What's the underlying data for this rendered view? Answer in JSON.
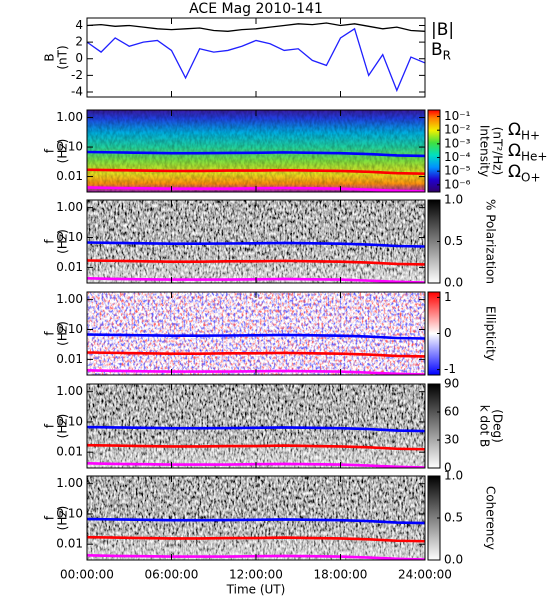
{
  "chart_data": [
    {
      "type": "line",
      "title": "ACE Mag 2010-141",
      "ylabel": [
        "B",
        "(nT)"
      ],
      "x": [
        0,
        1,
        2,
        3,
        4,
        5,
        6,
        7,
        8,
        9,
        10,
        11,
        12,
        13,
        14,
        15,
        16,
        17,
        18,
        19,
        20,
        21,
        22,
        23,
        24
      ],
      "xlim": [
        0,
        24
      ],
      "xticks": [
        0,
        6,
        12,
        18,
        24
      ],
      "ylim": [
        -4.6,
        4.9
      ],
      "yticks": [
        -4,
        -2,
        0,
        2,
        4
      ],
      "series": [
        {
          "name": "|B|",
          "color": "#000000",
          "values": [
            4.0,
            4.1,
            3.9,
            4.0,
            3.8,
            3.6,
            3.5,
            3.6,
            3.7,
            3.4,
            3.3,
            3.5,
            3.6,
            3.8,
            4.0,
            4.2,
            4.1,
            4.3,
            4.0,
            4.2,
            3.9,
            3.6,
            3.8,
            3.4,
            3.3
          ]
        },
        {
          "name": "B",
          "subscript": "R",
          "color": "#2020ff",
          "values": [
            2.0,
            0.8,
            2.5,
            1.5,
            2.0,
            2.2,
            1.0,
            -2.3,
            1.2,
            0.8,
            1.0,
            1.5,
            2.2,
            1.8,
            1.0,
            1.2,
            -0.2,
            -0.8,
            2.5,
            3.6,
            -2.0,
            0.5,
            -3.8,
            0.2,
            -0.5
          ]
        }
      ]
    },
    {
      "type": "spectrogram",
      "ylabel": [
        "f",
        "(Hz)"
      ],
      "colormap": "rainbow",
      "x": [
        0,
        2,
        4,
        6,
        8,
        10,
        12,
        14,
        16,
        18,
        20,
        22,
        24
      ],
      "xlim": [
        0,
        24
      ],
      "xticks": [
        0,
        6,
        12,
        18,
        24
      ],
      "ylog": true,
      "ylim": [
        0.003,
        1.8
      ],
      "yticks": [
        {
          "value": 1,
          "label": "1.00"
        },
        {
          "value": 0.1,
          "label": "0.10"
        },
        {
          "value": 0.01,
          "label": "0.01"
        }
      ],
      "colorbar": {
        "label": [
          "Intensity",
          "(nT²/Hz)"
        ],
        "log": true,
        "lim": [
          3e-07,
          0.3
        ],
        "ticks": [
          {
            "value": 0.1,
            "label": "10⁻¹"
          },
          {
            "value": 0.01,
            "label": "10⁻²"
          },
          {
            "value": 0.001,
            "label": "10⁻³"
          },
          {
            "value": 0.0001,
            "label": "10⁻⁴"
          },
          {
            "value": 1e-05,
            "label": "10⁻⁵"
          },
          {
            "value": 1e-06,
            "label": "10⁻⁶"
          }
        ]
      },
      "series": [
        {
          "name": "Ω",
          "subscript": "H+",
          "color": "#0000ff",
          "values": [
            0.068,
            0.066,
            0.064,
            0.062,
            0.062,
            0.063,
            0.064,
            0.066,
            0.064,
            0.062,
            0.058,
            0.052,
            0.05
          ]
        },
        {
          "name": "Ω",
          "subscript": "He+",
          "color": "#ff0000",
          "values": [
            0.017,
            0.0165,
            0.016,
            0.0155,
            0.0155,
            0.016,
            0.016,
            0.0165,
            0.016,
            0.0155,
            0.0145,
            0.013,
            0.0125
          ]
        },
        {
          "name": "Ω",
          "subscript": "O+",
          "color": "#ff00ff",
          "values": [
            0.0043,
            0.0041,
            0.004,
            0.0039,
            0.0039,
            0.0039,
            0.004,
            0.0041,
            0.004,
            0.0039,
            0.0036,
            0.0033,
            0.0031
          ]
        }
      ]
    },
    {
      "type": "spectrogram",
      "ylabel": [
        "f",
        "(Hz)"
      ],
      "colormap": "gray",
      "x": [
        0,
        2,
        4,
        6,
        8,
        10,
        12,
        14,
        16,
        18,
        20,
        22,
        24
      ],
      "xlim": [
        0,
        24
      ],
      "xticks": [
        0,
        6,
        12,
        18,
        24
      ],
      "ylog": true,
      "ylim": [
        0.003,
        1.8
      ],
      "yticks": [
        {
          "value": 1,
          "label": "1.00"
        },
        {
          "value": 0.1,
          "label": "0.10"
        },
        {
          "value": 0.01,
          "label": "0.01"
        }
      ],
      "colorbar": {
        "label": [
          "% Polarization"
        ],
        "lim": [
          0,
          1
        ],
        "ticks": [
          {
            "value": 1,
            "label": "1.0"
          },
          0.5,
          {
            "value": 0,
            "label": "0.0"
          }
        ]
      },
      "series": [
        {
          "color": "#0000ff",
          "values": [
            0.068,
            0.066,
            0.064,
            0.062,
            0.062,
            0.063,
            0.064,
            0.066,
            0.064,
            0.062,
            0.058,
            0.052,
            0.05
          ]
        },
        {
          "color": "#ff0000",
          "values": [
            0.017,
            0.0165,
            0.016,
            0.0155,
            0.0155,
            0.016,
            0.016,
            0.0165,
            0.016,
            0.0155,
            0.0145,
            0.013,
            0.0125
          ]
        },
        {
          "color": "#ff00ff",
          "values": [
            0.0043,
            0.0041,
            0.004,
            0.0039,
            0.0039,
            0.0039,
            0.004,
            0.0041,
            0.004,
            0.0039,
            0.0036,
            0.0033,
            0.0031
          ]
        }
      ]
    },
    {
      "type": "spectrogram",
      "ylabel": [
        "f",
        "(Hz)"
      ],
      "colormap": "redblue",
      "x": [
        0,
        2,
        4,
        6,
        8,
        10,
        12,
        14,
        16,
        18,
        20,
        22,
        24
      ],
      "xlim": [
        0,
        24
      ],
      "xticks": [
        0,
        6,
        12,
        18,
        24
      ],
      "ylog": true,
      "ylim": [
        0.003,
        1.8
      ],
      "yticks": [
        {
          "value": 1,
          "label": "1.00"
        },
        {
          "value": 0.1,
          "label": "0.10"
        },
        {
          "value": 0.01,
          "label": "0.01"
        }
      ],
      "colorbar": {
        "label": [
          "Ellipticity"
        ],
        "lim": [
          -1.15,
          1.15
        ],
        "ticks": [
          1,
          0,
          -1
        ]
      },
      "series": [
        {
          "color": "#0000ff",
          "values": [
            0.068,
            0.066,
            0.064,
            0.062,
            0.062,
            0.063,
            0.064,
            0.066,
            0.064,
            0.062,
            0.058,
            0.052,
            0.05
          ]
        },
        {
          "color": "#ff0000",
          "values": [
            0.017,
            0.0165,
            0.016,
            0.0155,
            0.0155,
            0.016,
            0.016,
            0.0165,
            0.016,
            0.0155,
            0.0145,
            0.013,
            0.0125
          ]
        },
        {
          "color": "#ff00ff",
          "values": [
            0.0043,
            0.0041,
            0.004,
            0.0039,
            0.0039,
            0.0039,
            0.004,
            0.0041,
            0.004,
            0.0039,
            0.0036,
            0.0033,
            0.0031
          ]
        }
      ]
    },
    {
      "type": "spectrogram",
      "ylabel": [
        "f",
        "(Hz)"
      ],
      "colormap": "gray",
      "x": [
        0,
        2,
        4,
        6,
        8,
        10,
        12,
        14,
        16,
        18,
        20,
        22,
        24
      ],
      "xlim": [
        0,
        24
      ],
      "xticks": [
        0,
        6,
        12,
        18,
        24
      ],
      "ylog": true,
      "ylim": [
        0.003,
        1.8
      ],
      "yticks": [
        {
          "value": 1,
          "label": "1.00"
        },
        {
          "value": 0.1,
          "label": "0.10"
        },
        {
          "value": 0.01,
          "label": "0.01"
        }
      ],
      "colorbar": {
        "label": [
          "k dot B",
          "(Deg)"
        ],
        "lim": [
          0,
          90
        ],
        "ticks": [
          90,
          60,
          30,
          0
        ]
      },
      "series": [
        {
          "color": "#0000ff",
          "values": [
            0.068,
            0.066,
            0.064,
            0.062,
            0.062,
            0.063,
            0.064,
            0.066,
            0.064,
            0.062,
            0.058,
            0.052,
            0.05
          ]
        },
        {
          "color": "#ff0000",
          "values": [
            0.017,
            0.0165,
            0.016,
            0.0155,
            0.0155,
            0.016,
            0.016,
            0.0165,
            0.016,
            0.0155,
            0.0145,
            0.013,
            0.0125
          ]
        },
        {
          "color": "#ff00ff",
          "values": [
            0.0043,
            0.0041,
            0.004,
            0.0039,
            0.0039,
            0.0039,
            0.004,
            0.0041,
            0.004,
            0.0039,
            0.0036,
            0.0033,
            0.0031
          ]
        }
      ]
    },
    {
      "type": "spectrogram",
      "ylabel": [
        "f",
        "(Hz)"
      ],
      "colormap": "gray",
      "xlabel": "Time (UT)",
      "x": [
        0,
        2,
        4,
        6,
        8,
        10,
        12,
        14,
        16,
        18,
        20,
        22,
        24
      ],
      "xlim": [
        0,
        24
      ],
      "xticks": [
        {
          "value": 0,
          "label": "00:00:00"
        },
        {
          "value": 6,
          "label": "06:00:00"
        },
        {
          "value": 12,
          "label": "12:00:00"
        },
        {
          "value": 18,
          "label": "18:00:00"
        },
        {
          "value": 24,
          "label": "24:00:00"
        }
      ],
      "ylog": true,
      "ylim": [
        0.003,
        1.8
      ],
      "yticks": [
        {
          "value": 1,
          "label": "1.00"
        },
        {
          "value": 0.1,
          "label": "0.10"
        },
        {
          "value": 0.01,
          "label": "0.01"
        }
      ],
      "colorbar": {
        "label": [
          "Coherency"
        ],
        "lim": [
          0,
          1
        ],
        "ticks": [
          {
            "value": 1,
            "label": "1.0"
          },
          0.5,
          {
            "value": 0,
            "label": "0.0"
          }
        ]
      },
      "series": [
        {
          "color": "#0000ff",
          "values": [
            0.068,
            0.066,
            0.064,
            0.062,
            0.062,
            0.063,
            0.064,
            0.066,
            0.064,
            0.062,
            0.058,
            0.052,
            0.05
          ]
        },
        {
          "color": "#ff0000",
          "values": [
            0.017,
            0.0165,
            0.016,
            0.0155,
            0.0155,
            0.016,
            0.016,
            0.0165,
            0.016,
            0.0155,
            0.0145,
            0.013,
            0.0125
          ]
        },
        {
          "color": "#ff00ff",
          "values": [
            0.0043,
            0.0041,
            0.004,
            0.0039,
            0.0039,
            0.0039,
            0.004,
            0.0041,
            0.004,
            0.0039,
            0.0036,
            0.0033,
            0.0031
          ]
        }
      ]
    }
  ]
}
